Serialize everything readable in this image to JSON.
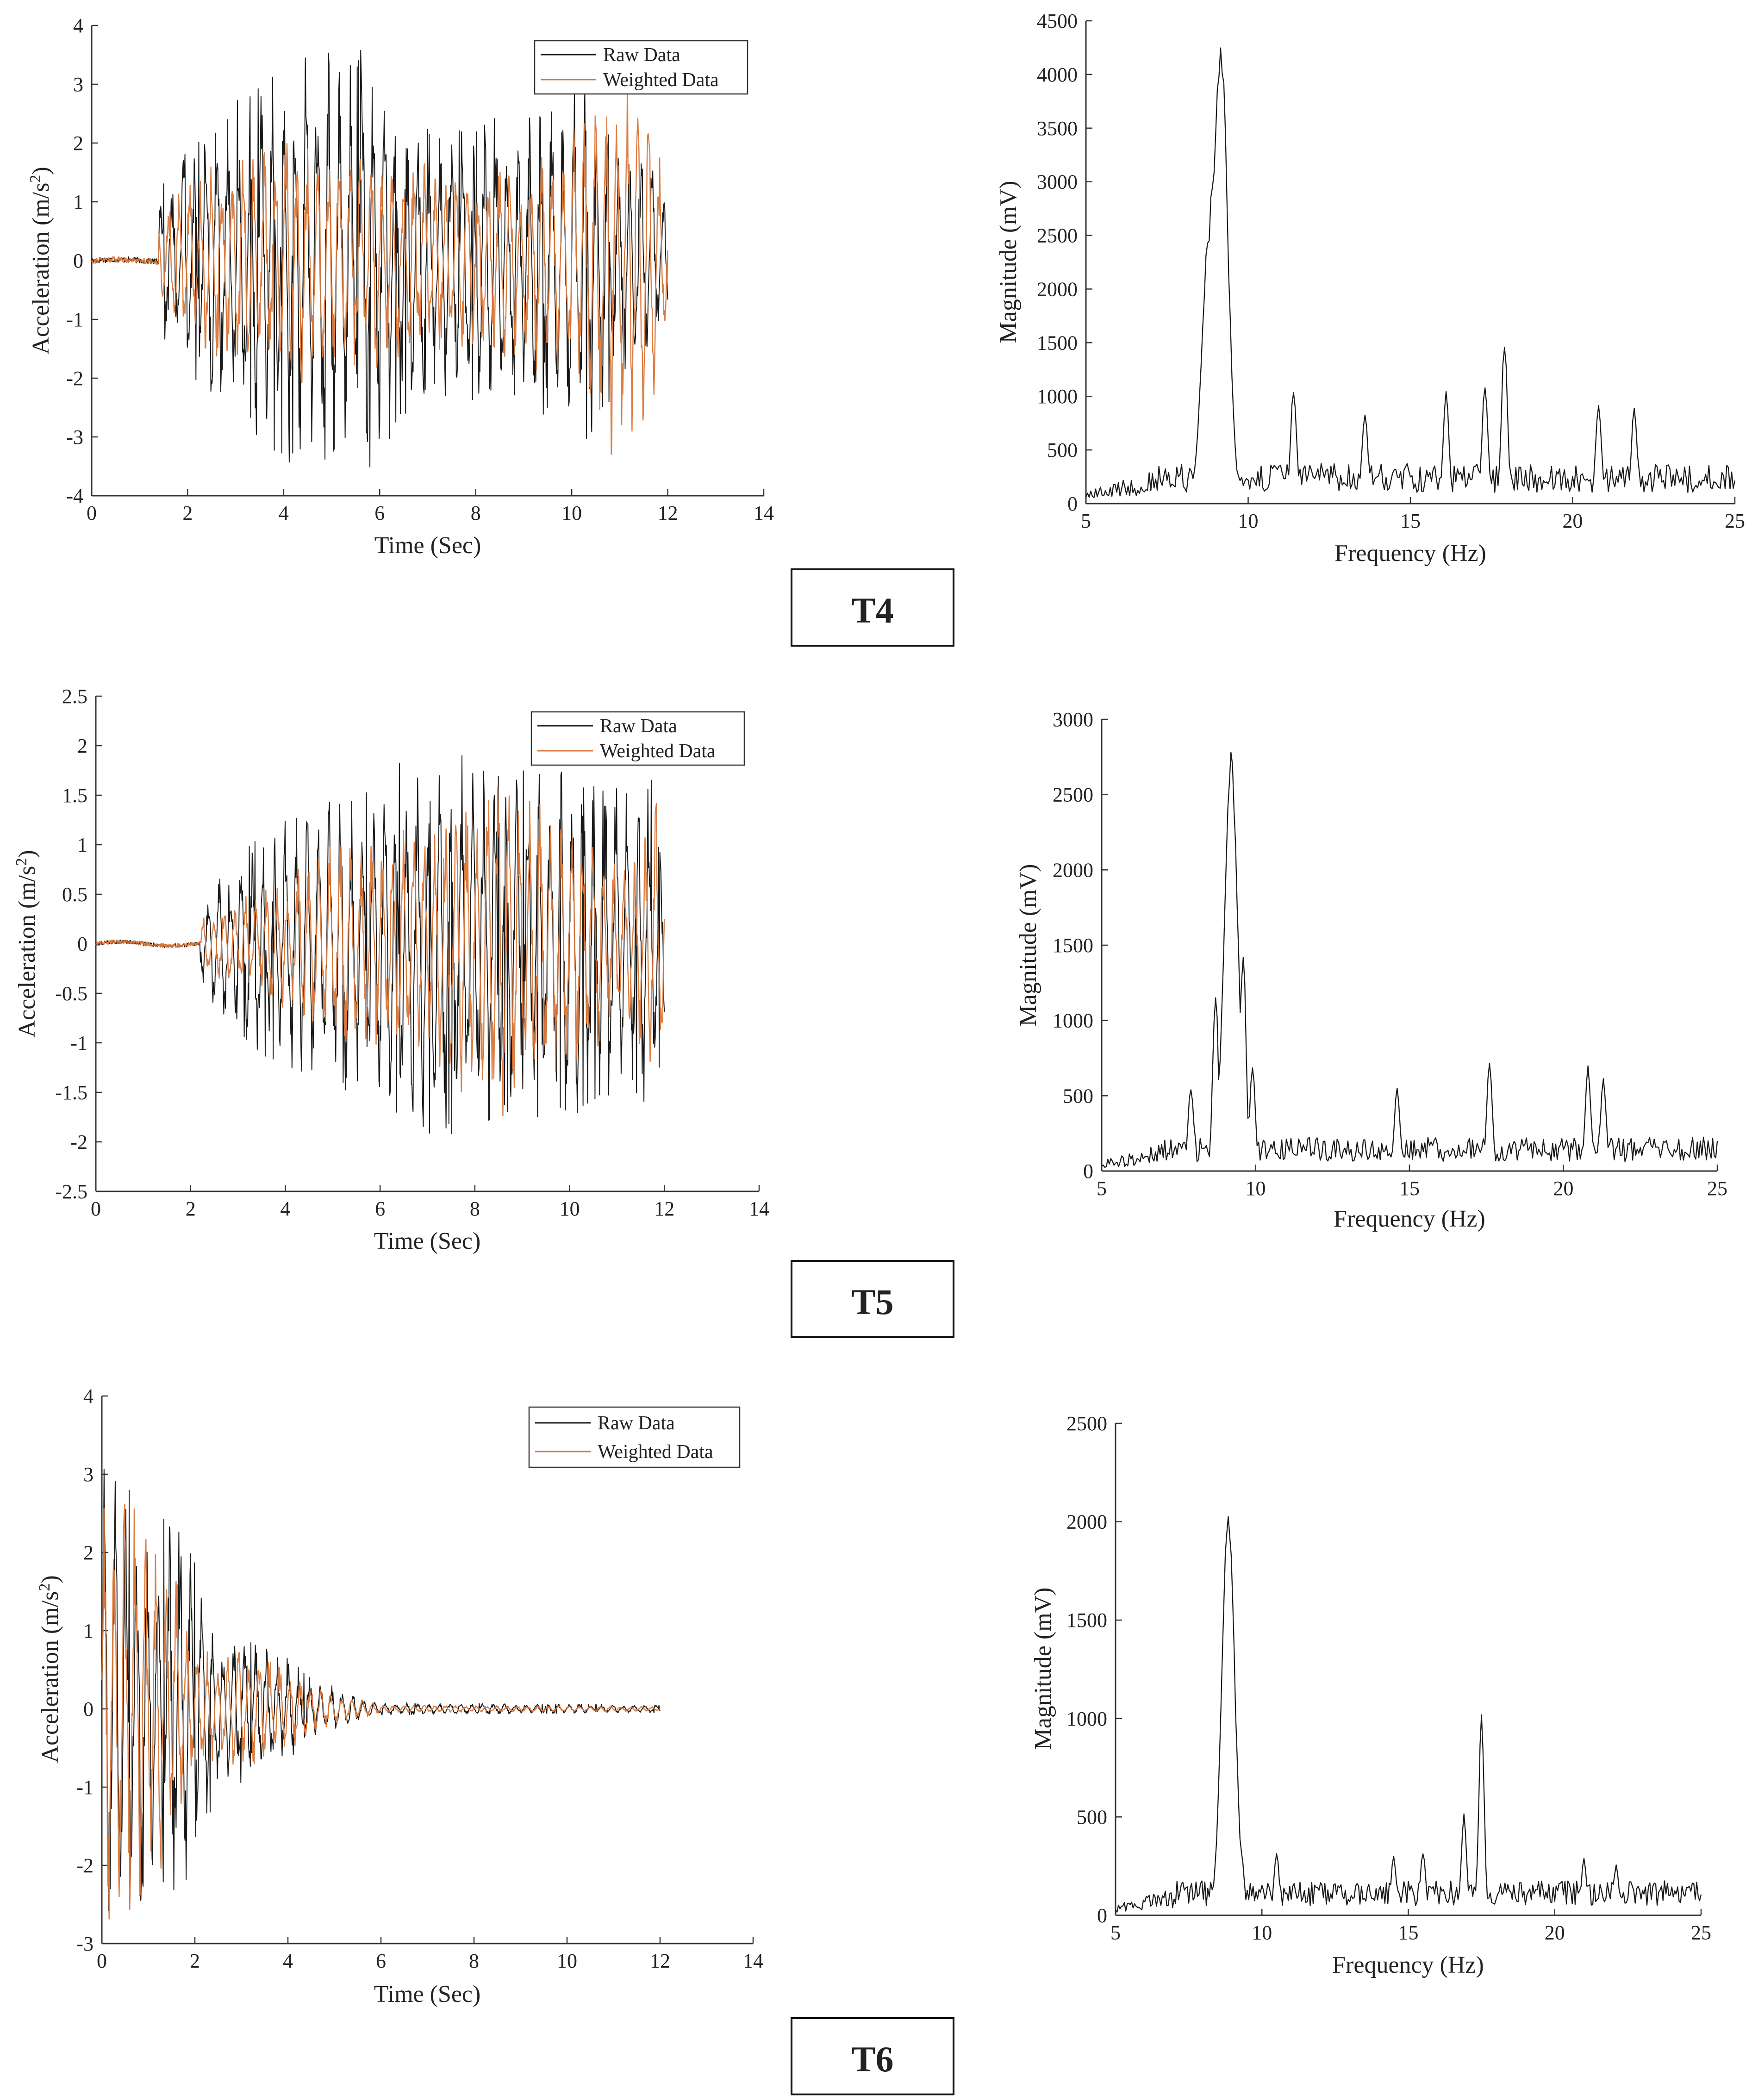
{
  "colors": {
    "raw": "#1a1a1a",
    "weighted": "#d9773a",
    "axis": "#333333"
  },
  "panels": [
    {
      "label": "T4",
      "time_chart": {
        "type": "line",
        "title": "",
        "xlabel": "Time (Sec)",
        "ylabel": "Acceleration (m/s2)",
        "xlim": [
          0,
          14
        ],
        "ylim": [
          -4,
          4
        ],
        "xticks": [
          "0",
          "2",
          "4",
          "6",
          "8",
          "10",
          "12",
          "14"
        ],
        "yticks": [
          "-4",
          "-3",
          "-2",
          "-1",
          "0",
          "1",
          "2",
          "3",
          "4"
        ],
        "legend": [
          "Raw Data",
          "Weighted Data"
        ],
        "legend_position": "top-right",
        "signal": {
          "start": 1.4,
          "end": 12.0,
          "pre_noise": 0.05,
          "raw_env": [
            [
              1.4,
              1.2
            ],
            [
              2,
              1.9
            ],
            [
              4,
              3.5
            ],
            [
              5.8,
              3.6
            ],
            [
              7,
              2.3
            ],
            [
              9,
              2.5
            ],
            [
              10.3,
              3.1
            ],
            [
              12,
              1.2
            ]
          ],
          "weighted_env": [
            [
              1.4,
              0.8
            ],
            [
              2,
              1.5
            ],
            [
              4,
              2.2
            ],
            [
              6,
              1.9
            ],
            [
              8,
              1.6
            ],
            [
              9.8,
              2.0
            ],
            [
              10.7,
              3.4
            ],
            [
              11.5,
              3.2
            ],
            [
              12,
              1.3
            ]
          ]
        }
      },
      "freq_chart": {
        "type": "line",
        "title": "",
        "xlabel": "Frequency (Hz)",
        "ylabel": "Magnitude (mV)",
        "xlim": [
          5,
          25
        ],
        "ylim": [
          0,
          4500
        ],
        "xticks": [
          "5",
          "10",
          "15",
          "20",
          "25"
        ],
        "yticks": [
          "0",
          "500",
          "1000",
          "1500",
          "2000",
          "2500",
          "3000",
          "3500",
          "4000",
          "4500"
        ],
        "peaks": [
          [
            8.6,
            1400
          ],
          [
            8.8,
            2600
          ],
          [
            8.95,
            3200
          ],
          [
            9.15,
            4370
          ],
          [
            9.5,
            800
          ],
          [
            11.4,
            1100
          ],
          [
            13.6,
            880
          ],
          [
            16.1,
            1050
          ],
          [
            17.3,
            1150
          ],
          [
            17.9,
            1560
          ],
          [
            20.8,
            950
          ],
          [
            21.9,
            900
          ]
        ],
        "baseline": 300
      }
    },
    {
      "label": "T5",
      "time_chart": {
        "type": "line",
        "title": "",
        "xlabel": "Time (Sec)",
        "ylabel": "Acceleration (m/s2)",
        "xlim": [
          0,
          14
        ],
        "ylim": [
          -2.5,
          2.5
        ],
        "xticks": [
          "0",
          "2",
          "4",
          "6",
          "8",
          "10",
          "12",
          "14"
        ],
        "yticks": [
          "-2.5",
          "-2",
          "-1.5",
          "-1",
          "-0.5",
          "0",
          "0.5",
          "1",
          "1.5",
          "2",
          "2.5"
        ],
        "legend": [
          "Raw Data",
          "Weighted Data"
        ],
        "legend_position": "top-right",
        "signal": {
          "start": 2.2,
          "end": 12.0,
          "pre_noise": 0.02,
          "raw_env": [
            [
              2.2,
              0.5
            ],
            [
              3.8,
              1.3
            ],
            [
              5.5,
              1.6
            ],
            [
              7,
              2.0
            ],
            [
              8.5,
              1.8
            ],
            [
              10,
              1.8
            ],
            [
              11,
              1.6
            ],
            [
              11.7,
              1.7
            ],
            [
              12,
              1.2
            ]
          ],
          "weighted_env": [
            [
              2.2,
              0.3
            ],
            [
              3.8,
              0.6
            ],
            [
              5,
              1.1
            ],
            [
              7,
              1.2
            ],
            [
              8.5,
              1.9
            ],
            [
              10,
              1.3
            ],
            [
              11.3,
              0.8
            ],
            [
              11.8,
              1.5
            ],
            [
              12,
              1.2
            ]
          ]
        }
      },
      "freq_chart": {
        "type": "line",
        "title": "",
        "xlabel": "Frequency (Hz)",
        "ylabel": "Magnitude (mV)",
        "xlim": [
          5,
          25
        ],
        "ylim": [
          0,
          3000
        ],
        "xticks": [
          "5",
          "10",
          "15",
          "20",
          "25"
        ],
        "yticks": [
          "0",
          "500",
          "1000",
          "1500",
          "2000",
          "2500",
          "3000"
        ],
        "peaks": [
          [
            7.9,
            580
          ],
          [
            8.7,
            1200
          ],
          [
            9.2,
            2790
          ],
          [
            9.6,
            1500
          ],
          [
            9.9,
            700
          ],
          [
            14.6,
            560
          ],
          [
            17.6,
            730
          ],
          [
            20.8,
            700
          ],
          [
            21.3,
            620
          ]
        ],
        "baseline": 180
      }
    },
    {
      "label": "T6",
      "time_chart": {
        "type": "line",
        "title": "",
        "xlabel": "Time (Sec)",
        "ylabel": "Acceleration (m/s2)",
        "xlim": [
          0,
          14
        ],
        "ylim": [
          -3,
          4
        ],
        "xticks": [
          "0",
          "2",
          "4",
          "6",
          "8",
          "10",
          "12",
          "14"
        ],
        "yticks": [
          "-3",
          "-2",
          "-1",
          "0",
          "1",
          "2",
          "3",
          "4"
        ],
        "legend": [
          "Raw Data",
          "Weighted Data"
        ],
        "legend_position": "top-right",
        "signal": {
          "start": 0.0,
          "end": 12.0,
          "pre_noise": 0.0,
          "raw_env": [
            [
              0,
              3.2
            ],
            [
              1.2,
              2.5
            ],
            [
              1.8,
              2.4
            ],
            [
              2.5,
              1.0
            ],
            [
              3.5,
              0.9
            ],
            [
              4.5,
              0.4
            ],
            [
              6,
              0.08
            ],
            [
              12,
              0.05
            ]
          ],
          "weighted_env": [
            [
              0,
              2.8
            ],
            [
              0.6,
              2.8
            ],
            [
              1.5,
              2.0
            ],
            [
              2,
              0.8
            ],
            [
              3.5,
              0.8
            ],
            [
              4.5,
              0.3
            ],
            [
              6,
              0.05
            ],
            [
              12,
              0.03
            ]
          ]
        }
      },
      "freq_chart": {
        "type": "line",
        "title": "",
        "xlabel": "Frequency (Hz)",
        "ylabel": "Magnitude (mV)",
        "xlim": [
          5,
          25
        ],
        "ylim": [
          0,
          2500
        ],
        "xticks": [
          "5",
          "10",
          "15",
          "20",
          "25"
        ],
        "yticks": [
          "0",
          "500",
          "1000",
          "1500",
          "2000",
          "2500"
        ],
        "peaks": [
          [
            8.85,
            2100
          ],
          [
            9.3,
            330
          ],
          [
            10.5,
            320
          ],
          [
            14.5,
            300
          ],
          [
            15.5,
            330
          ],
          [
            16.9,
            520
          ],
          [
            17.5,
            1040
          ],
          [
            21.0,
            290
          ],
          [
            22.1,
            260
          ]
        ],
        "baseline": 140
      }
    }
  ]
}
